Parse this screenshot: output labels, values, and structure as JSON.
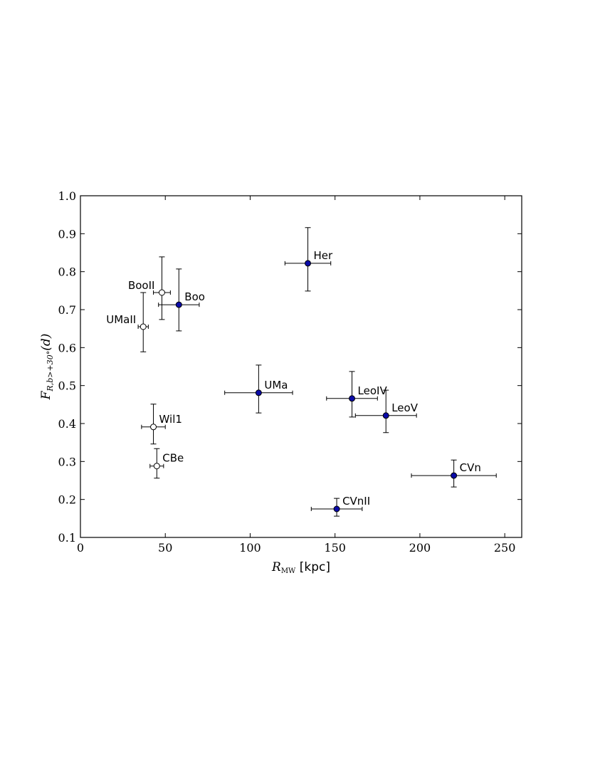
{
  "chart_data": {
    "type": "scatter",
    "xlabel": {
      "main": "R",
      "sub": "MW",
      "rest": " [kpc]"
    },
    "ylabel": {
      "main": "F",
      "sub": "R,b>+30°",
      "rest": "(d)"
    },
    "xlim": [
      0,
      260
    ],
    "ylim": [
      0.1,
      1.0
    ],
    "xticks": [
      0,
      50,
      100,
      150,
      200,
      250
    ],
    "yticks": [
      0.1,
      0.2,
      0.3,
      0.4,
      0.5,
      0.6,
      0.7,
      0.8,
      0.9,
      {
        "value": 1.0,
        "label": "1.0"
      }
    ],
    "series": [
      {
        "color": "#0a0aa8",
        "labels": [
          "Boo",
          "Her",
          "UMa",
          "LeoIV",
          "LeoV",
          "CVn",
          "CVnII"
        ],
        "x": [
          58,
          134,
          105,
          160,
          180,
          220,
          151
        ],
        "y": [
          0.713,
          0.822,
          0.481,
          0.466,
          0.421,
          0.263,
          0.175
        ],
        "xerr": [
          12,
          13.5,
          20,
          15,
          18,
          25,
          15
        ],
        "yerr_minus": [
          0.069,
          0.073,
          0.053,
          0.049,
          0.045,
          0.03,
          0.019
        ],
        "yerr_plus": [
          0.094,
          0.094,
          0.073,
          0.071,
          0.067,
          0.041,
          0.028
        ]
      },
      {
        "color": "#ffffff",
        "labels": [
          "BooII",
          "UMaII",
          "Wil1",
          "CBe"
        ],
        "x": [
          48,
          37,
          43,
          45
        ],
        "y": [
          0.745,
          0.655,
          0.391,
          0.288
        ],
        "xerr": [
          5,
          3,
          7,
          4
        ],
        "yerr_minus": [
          0.071,
          0.066,
          0.045,
          0.032
        ],
        "yerr_plus": [
          0.094,
          0.09,
          0.06,
          0.046
        ]
      }
    ]
  }
}
